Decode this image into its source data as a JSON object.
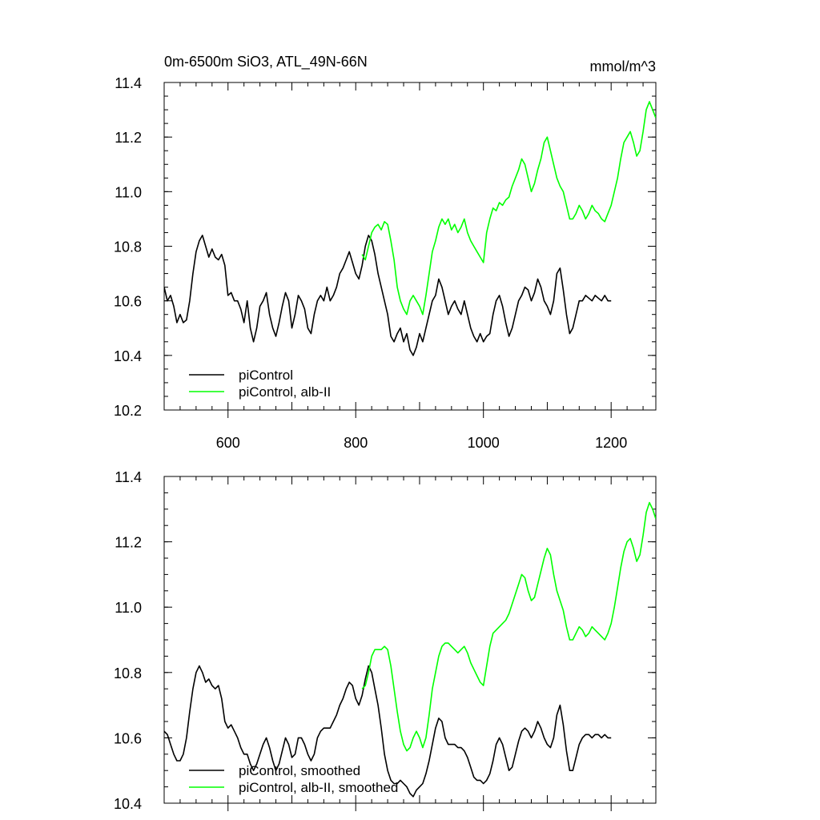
{
  "colors": {
    "control": "#000000",
    "alb": "#00ff00",
    "axis": "#000000"
  },
  "chart_data": [
    {
      "type": "line",
      "title": "0m-6500m SiO3, ATL_49N-66N",
      "units": "mmol/m^3",
      "xlabel": "",
      "ylabel": "",
      "xlim": [
        500,
        1270
      ],
      "ylim": [
        10.2,
        11.4
      ],
      "xticks": [
        "600",
        "800",
        "1000",
        "1200"
      ],
      "yticks": [
        "10.2",
        "10.4",
        "10.6",
        "10.8",
        "11.0",
        "11.2",
        "11.4"
      ],
      "legend_position": "bottom-left",
      "series": [
        {
          "name": "piControl",
          "color": "#000000",
          "x": [
            500,
            505,
            510,
            515,
            520,
            525,
            530,
            535,
            540,
            545,
            550,
            555,
            560,
            565,
            570,
            575,
            580,
            585,
            590,
            595,
            600,
            605,
            610,
            615,
            620,
            625,
            630,
            635,
            640,
            645,
            650,
            655,
            660,
            665,
            670,
            675,
            680,
            685,
            690,
            695,
            700,
            705,
            710,
            715,
            720,
            725,
            730,
            735,
            740,
            745,
            750,
            755,
            760,
            765,
            770,
            775,
            780,
            785,
            790,
            795,
            800,
            805,
            810,
            815,
            820,
            825,
            830,
            835,
            840,
            845,
            850,
            855,
            860,
            865,
            870,
            875,
            880,
            885,
            890,
            895,
            900,
            905,
            910,
            915,
            920,
            925,
            930,
            935,
            940,
            945,
            950,
            955,
            960,
            965,
            970,
            975,
            980,
            985,
            990,
            995,
            1000,
            1005,
            1010,
            1015,
            1020,
            1025,
            1030,
            1035,
            1040,
            1045,
            1050,
            1055,
            1060,
            1065,
            1070,
            1075,
            1080,
            1085,
            1090,
            1095,
            1100,
            1105,
            1110,
            1115,
            1120,
            1125,
            1130,
            1135,
            1140,
            1145,
            1150,
            1155,
            1160,
            1165,
            1170,
            1175,
            1180,
            1185,
            1190,
            1195,
            1200
          ],
          "y": [
            10.65,
            10.6,
            10.62,
            10.58,
            10.52,
            10.55,
            10.52,
            10.53,
            10.6,
            10.7,
            10.78,
            10.82,
            10.84,
            10.8,
            10.76,
            10.79,
            10.76,
            10.75,
            10.77,
            10.73,
            10.62,
            10.63,
            10.6,
            10.6,
            10.57,
            10.52,
            10.6,
            10.5,
            10.45,
            10.5,
            10.58,
            10.6,
            10.63,
            10.55,
            10.5,
            10.47,
            10.52,
            10.58,
            10.63,
            10.6,
            10.5,
            10.55,
            10.62,
            10.6,
            10.57,
            10.5,
            10.48,
            10.55,
            10.6,
            10.62,
            10.6,
            10.65,
            10.6,
            10.62,
            10.65,
            10.7,
            10.72,
            10.75,
            10.78,
            10.74,
            10.7,
            10.68,
            10.73,
            10.8,
            10.84,
            10.82,
            10.77,
            10.7,
            10.65,
            10.6,
            10.55,
            10.47,
            10.45,
            10.48,
            10.5,
            10.45,
            10.48,
            10.42,
            10.4,
            10.43,
            10.48,
            10.45,
            10.5,
            10.55,
            10.6,
            10.62,
            10.68,
            10.65,
            10.6,
            10.55,
            10.58,
            10.6,
            10.57,
            10.55,
            10.6,
            10.55,
            10.5,
            10.47,
            10.45,
            10.48,
            10.45,
            10.47,
            10.48,
            10.55,
            10.6,
            10.62,
            10.58,
            10.52,
            10.47,
            10.5,
            10.55,
            10.6,
            10.62,
            10.65,
            10.64,
            10.6,
            10.63,
            10.68,
            10.65,
            10.6,
            10.58,
            10.55,
            10.6,
            10.7,
            10.72,
            10.64,
            10.55,
            10.48,
            10.5,
            10.55,
            10.6,
            10.6,
            10.62,
            10.61,
            10.6,
            10.62,
            10.61,
            10.6,
            10.62,
            10.6,
            10.6
          ]
        },
        {
          "name": "piControl, alb-II",
          "color": "#00ff00",
          "x": [
            810,
            815,
            820,
            825,
            830,
            835,
            840,
            845,
            850,
            855,
            860,
            865,
            870,
            875,
            880,
            885,
            890,
            895,
            900,
            905,
            910,
            915,
            920,
            925,
            930,
            935,
            940,
            945,
            950,
            955,
            960,
            965,
            970,
            975,
            980,
            985,
            990,
            995,
            1000,
            1005,
            1010,
            1015,
            1020,
            1025,
            1030,
            1035,
            1040,
            1045,
            1050,
            1055,
            1060,
            1065,
            1070,
            1075,
            1080,
            1085,
            1090,
            1095,
            1100,
            1105,
            1110,
            1115,
            1120,
            1125,
            1130,
            1135,
            1140,
            1145,
            1150,
            1155,
            1160,
            1165,
            1170,
            1175,
            1180,
            1185,
            1190,
            1195,
            1200,
            1205,
            1210,
            1215,
            1220,
            1225,
            1230,
            1235,
            1240,
            1245,
            1250,
            1255,
            1260,
            1265,
            1270
          ],
          "y": [
            10.77,
            10.75,
            10.8,
            10.85,
            10.87,
            10.88,
            10.86,
            10.89,
            10.88,
            10.82,
            10.75,
            10.65,
            10.6,
            10.57,
            10.55,
            10.6,
            10.62,
            10.6,
            10.58,
            10.55,
            10.62,
            10.7,
            10.78,
            10.82,
            10.87,
            10.9,
            10.88,
            10.9,
            10.86,
            10.88,
            10.85,
            10.87,
            10.9,
            10.85,
            10.82,
            10.8,
            10.78,
            10.76,
            10.74,
            10.85,
            10.9,
            10.94,
            10.93,
            10.96,
            10.95,
            10.97,
            10.98,
            11.02,
            11.05,
            11.08,
            11.12,
            11.1,
            11.05,
            11.0,
            11.03,
            11.08,
            11.12,
            11.18,
            11.2,
            11.15,
            11.1,
            11.05,
            11.02,
            11.0,
            10.95,
            10.9,
            10.9,
            10.92,
            10.95,
            10.93,
            10.9,
            10.92,
            10.95,
            10.93,
            10.92,
            10.9,
            10.89,
            10.92,
            10.95,
            11.0,
            11.05,
            11.12,
            11.18,
            11.2,
            11.22,
            11.18,
            11.13,
            11.15,
            11.22,
            11.3,
            11.33,
            11.3,
            11.27
          ]
        }
      ]
    },
    {
      "type": "line",
      "title": "",
      "xlabel": "",
      "ylabel": "",
      "xlim": [
        500,
        1270
      ],
      "ylim": [
        10.4,
        11.4
      ],
      "xticks": [],
      "yticks": [
        "10.4",
        "10.6",
        "10.8",
        "11.0",
        "11.2",
        "11.4"
      ],
      "legend_position": "bottom-left",
      "series": [
        {
          "name": "piControl, smoothed",
          "color": "#000000",
          "x": [
            500,
            505,
            510,
            515,
            520,
            525,
            530,
            535,
            540,
            545,
            550,
            555,
            560,
            565,
            570,
            575,
            580,
            585,
            590,
            595,
            600,
            605,
            610,
            615,
            620,
            625,
            630,
            635,
            640,
            645,
            650,
            655,
            660,
            665,
            670,
            675,
            680,
            685,
            690,
            695,
            700,
            705,
            710,
            715,
            720,
            725,
            730,
            735,
            740,
            745,
            750,
            755,
            760,
            765,
            770,
            775,
            780,
            785,
            790,
            795,
            800,
            805,
            810,
            815,
            820,
            825,
            830,
            835,
            840,
            845,
            850,
            855,
            860,
            865,
            870,
            875,
            880,
            885,
            890,
            895,
            900,
            905,
            910,
            915,
            920,
            925,
            930,
            935,
            940,
            945,
            950,
            955,
            960,
            965,
            970,
            975,
            980,
            985,
            990,
            995,
            1000,
            1005,
            1010,
            1015,
            1020,
            1025,
            1030,
            1035,
            1040,
            1045,
            1050,
            1055,
            1060,
            1065,
            1070,
            1075,
            1080,
            1085,
            1090,
            1095,
            1100,
            1105,
            1110,
            1115,
            1120,
            1125,
            1130,
            1135,
            1140,
            1145,
            1150,
            1155,
            1160,
            1165,
            1170,
            1175,
            1180,
            1185,
            1190,
            1195,
            1200
          ],
          "y": [
            10.62,
            10.61,
            10.58,
            10.55,
            10.53,
            10.53,
            10.55,
            10.6,
            10.68,
            10.75,
            10.8,
            10.82,
            10.8,
            10.77,
            10.78,
            10.76,
            10.75,
            10.76,
            10.72,
            10.65,
            10.63,
            10.64,
            10.62,
            10.6,
            10.57,
            10.55,
            10.55,
            10.52,
            10.5,
            10.52,
            10.55,
            10.58,
            10.6,
            10.57,
            10.53,
            10.5,
            10.52,
            10.56,
            10.6,
            10.58,
            10.54,
            10.55,
            10.6,
            10.6,
            10.58,
            10.55,
            10.53,
            10.55,
            10.6,
            10.62,
            10.63,
            10.63,
            10.63,
            10.65,
            10.67,
            10.7,
            10.72,
            10.75,
            10.77,
            10.76,
            10.72,
            10.7,
            10.73,
            10.78,
            10.82,
            10.8,
            10.75,
            10.7,
            10.63,
            10.55,
            10.5,
            10.47,
            10.46,
            10.46,
            10.47,
            10.46,
            10.45,
            10.43,
            10.42,
            10.44,
            10.45,
            10.46,
            10.49,
            10.53,
            10.58,
            10.63,
            10.66,
            10.65,
            10.6,
            10.58,
            10.58,
            10.58,
            10.57,
            10.57,
            10.56,
            10.54,
            10.51,
            10.48,
            10.47,
            10.47,
            10.46,
            10.47,
            10.49,
            10.53,
            10.58,
            10.6,
            10.58,
            10.54,
            10.5,
            10.51,
            10.55,
            10.59,
            10.62,
            10.63,
            10.62,
            10.6,
            10.62,
            10.65,
            10.63,
            10.6,
            10.58,
            10.57,
            10.6,
            10.67,
            10.7,
            10.64,
            10.56,
            10.5,
            10.5,
            10.54,
            10.58,
            10.6,
            10.61,
            10.61,
            10.6,
            10.61,
            10.61,
            10.6,
            10.61,
            10.6,
            10.6
          ]
        },
        {
          "name": "piControl, alb-II, smoothed",
          "color": "#00ff00",
          "x": [
            810,
            815,
            820,
            825,
            830,
            835,
            840,
            845,
            850,
            855,
            860,
            865,
            870,
            875,
            880,
            885,
            890,
            895,
            900,
            905,
            910,
            915,
            920,
            925,
            930,
            935,
            940,
            945,
            950,
            955,
            960,
            965,
            970,
            975,
            980,
            985,
            990,
            995,
            1000,
            1005,
            1010,
            1015,
            1020,
            1025,
            1030,
            1035,
            1040,
            1045,
            1050,
            1055,
            1060,
            1065,
            1070,
            1075,
            1080,
            1085,
            1090,
            1095,
            1100,
            1105,
            1110,
            1115,
            1120,
            1125,
            1130,
            1135,
            1140,
            1145,
            1150,
            1155,
            1160,
            1165,
            1170,
            1175,
            1180,
            1185,
            1190,
            1195,
            1200,
            1205,
            1210,
            1215,
            1220,
            1225,
            1230,
            1235,
            1240,
            1245,
            1250,
            1255,
            1260,
            1265,
            1270
          ],
          "y": [
            10.75,
            10.76,
            10.8,
            10.85,
            10.87,
            10.87,
            10.87,
            10.88,
            10.87,
            10.82,
            10.75,
            10.68,
            10.62,
            10.58,
            10.56,
            10.57,
            10.6,
            10.62,
            10.6,
            10.57,
            10.6,
            10.67,
            10.75,
            10.8,
            10.85,
            10.88,
            10.89,
            10.89,
            10.88,
            10.87,
            10.86,
            10.87,
            10.88,
            10.86,
            10.83,
            10.81,
            10.79,
            10.77,
            10.76,
            10.82,
            10.88,
            10.92,
            10.93,
            10.94,
            10.95,
            10.96,
            10.98,
            11.01,
            11.04,
            11.07,
            11.1,
            11.09,
            11.05,
            11.02,
            11.03,
            11.07,
            11.11,
            11.15,
            11.18,
            11.16,
            11.1,
            11.05,
            11.02,
            10.99,
            10.94,
            10.9,
            10.9,
            10.92,
            10.94,
            10.93,
            10.91,
            10.92,
            10.94,
            10.93,
            10.92,
            10.91,
            10.9,
            10.92,
            10.95,
            11.0,
            11.06,
            11.12,
            11.17,
            11.2,
            11.21,
            11.18,
            11.14,
            11.16,
            11.22,
            11.29,
            11.32,
            11.3,
            11.27
          ]
        }
      ]
    }
  ]
}
